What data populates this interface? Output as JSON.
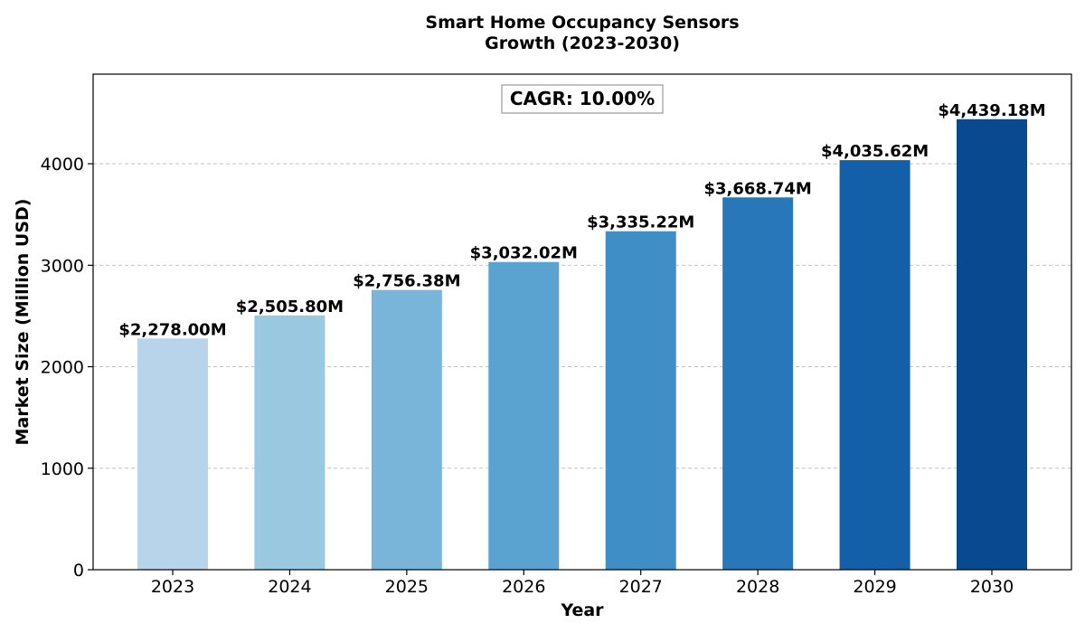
{
  "chart_data": {
    "type": "bar",
    "title_lines": [
      "Smart Home Occupancy Sensors",
      "Growth (2023-2030)"
    ],
    "xlabel": "Year",
    "ylabel": "Market Size (Million USD)",
    "categories": [
      "2023",
      "2024",
      "2025",
      "2026",
      "2027",
      "2028",
      "2029",
      "2030"
    ],
    "values": [
      2278.0,
      2505.8,
      2756.38,
      3032.02,
      3335.22,
      3668.74,
      4035.62,
      4439.18
    ],
    "value_labels": [
      "$2,278.00M",
      "$2,505.80M",
      "$2,756.38M",
      "$3,032.02M",
      "$3,335.22M",
      "$3,668.74M",
      "$4,035.62M",
      "$4,439.18M"
    ],
    "bar_colors": [
      "#b8d4ea",
      "#9ac8e0",
      "#79b5d8",
      "#5aa2cf",
      "#3f8ec6",
      "#2878b9",
      "#135fa8",
      "#08498f"
    ],
    "ylim": [
      0,
      4883
    ],
    "yticks": [
      0,
      1000,
      2000,
      3000,
      4000
    ],
    "grid": true,
    "annotation": "CAGR: 10.00%"
  }
}
